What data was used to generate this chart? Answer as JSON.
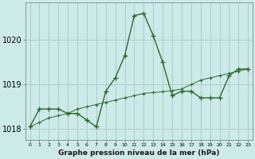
{
  "x": [
    0,
    1,
    2,
    3,
    4,
    5,
    6,
    7,
    8,
    9,
    10,
    11,
    12,
    13,
    14,
    15,
    16,
    17,
    18,
    19,
    20,
    21,
    22,
    23
  ],
  "line1": [
    1018.05,
    1018.45,
    1018.45,
    1018.45,
    1018.35,
    1018.35,
    1018.2,
    1018.05,
    1018.85,
    1019.15,
    1019.65,
    1020.55,
    1020.6,
    1020.1,
    1019.5,
    1018.75,
    1018.85,
    1018.85,
    1018.7,
    1018.7,
    1018.7,
    1019.2,
    1019.35,
    1019.35
  ],
  "line2": [
    1018.05,
    1018.15,
    1018.25,
    1018.3,
    1018.35,
    1018.45,
    1018.5,
    1018.55,
    1018.6,
    1018.65,
    1018.7,
    1018.75,
    1018.8,
    1018.82,
    1018.84,
    1018.86,
    1018.9,
    1019.0,
    1019.1,
    1019.15,
    1019.2,
    1019.25,
    1019.3,
    1019.35
  ],
  "line_color": "#2d6a2d",
  "bg_color": "#cceae8",
  "grid_color": "#aacccc",
  "xlabel": "Graphe pression niveau de la mer (hPa)",
  "ylim": [
    1017.75,
    1020.85
  ],
  "yticks": [
    1018,
    1019,
    1020
  ],
  "xticks": [
    0,
    1,
    2,
    3,
    4,
    5,
    6,
    7,
    8,
    9,
    10,
    11,
    12,
    13,
    14,
    15,
    16,
    17,
    18,
    19,
    20,
    21,
    22,
    23
  ]
}
